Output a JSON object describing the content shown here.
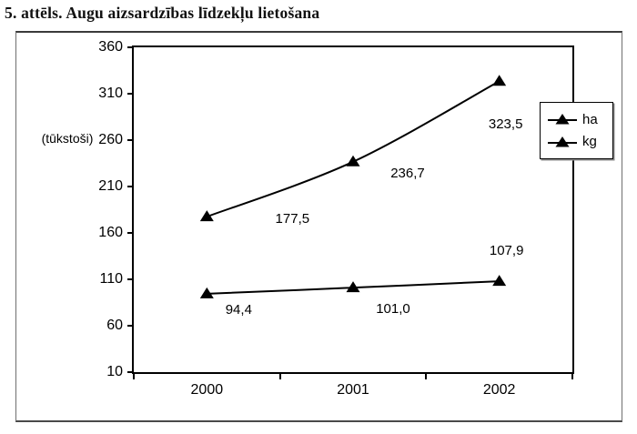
{
  "title": "5. attēls. Augu aizsardzības līdzekļu lietošana",
  "chart_data": {
    "type": "line",
    "title": "5. attēls. Augu aizsardzības līdzekļu lietošana",
    "categories": [
      "2000",
      "2001",
      "2002"
    ],
    "series": [
      {
        "name": "ha",
        "values": [
          177.5,
          236.7,
          323.5
        ],
        "value_labels": [
          "177,5",
          "236,7",
          "323,5"
        ]
      },
      {
        "name": "kg",
        "values": [
          94.4,
          101.0,
          107.9
        ],
        "value_labels": [
          "94,4",
          "101,0",
          "107,9"
        ]
      }
    ],
    "xlabel": "",
    "ylabel": "(tūkstoši)",
    "ylim": [
      10,
      360
    ],
    "yticks": [
      360,
      310,
      260,
      210,
      160,
      110,
      60,
      10
    ],
    "grid": "off",
    "legend_position": "right-inside",
    "marker": "filled-triangle-up",
    "line_color": "#000000",
    "smooth": true,
    "label_offsets": [
      [
        [
          94,
          4
        ],
        [
          60,
          14
        ],
        [
          7,
          49
        ]
      ],
      [
        [
          35,
          19
        ],
        [
          44,
          25
        ],
        [
          8,
          -32
        ]
      ]
    ]
  },
  "legend": {
    "items": [
      "ha",
      "kg"
    ]
  }
}
